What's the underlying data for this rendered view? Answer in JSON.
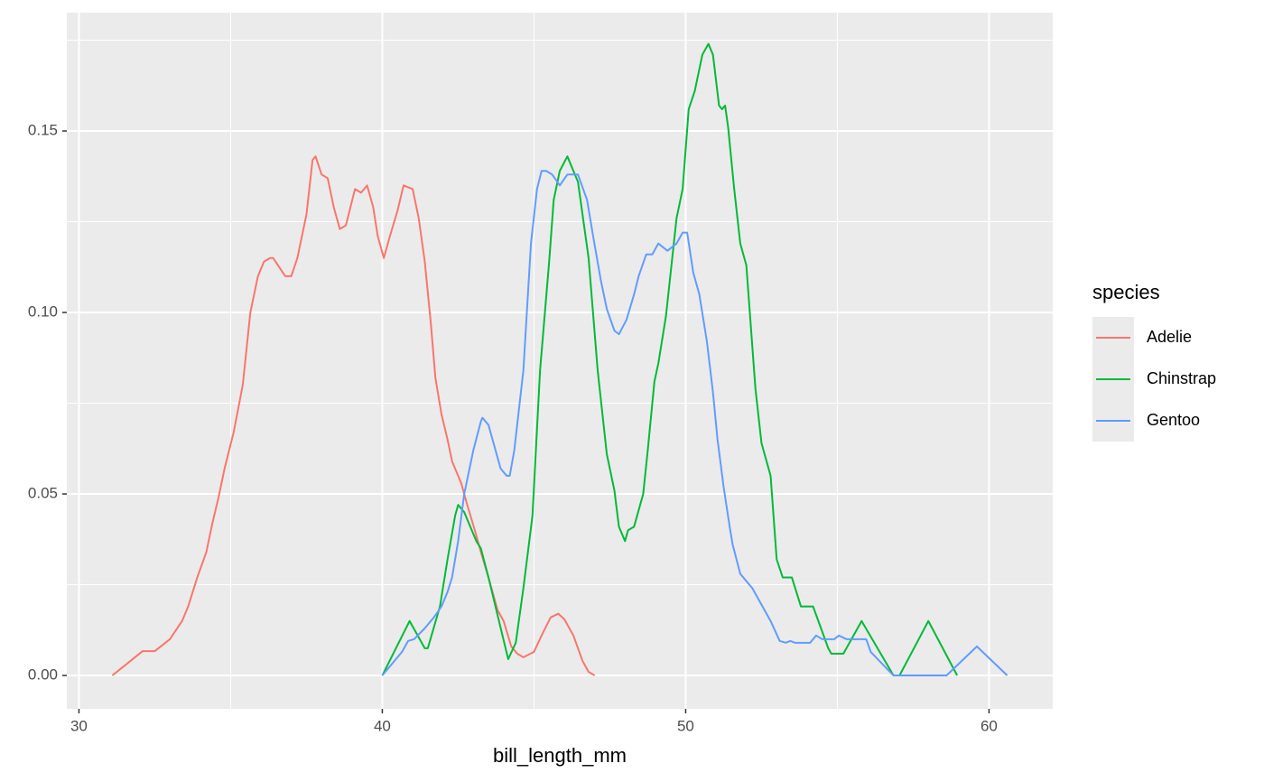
{
  "chart_data": {
    "type": "line",
    "x_label": "bill_length_mm",
    "legend_title": "species",
    "legend_position": "right",
    "grid": true,
    "xlim": [
      29.6,
      62.1
    ],
    "ylim": [
      -0.0092,
      0.1826
    ],
    "xticks": [
      30,
      40,
      50,
      60
    ],
    "yticks": [
      {
        "value": 0,
        "label": "0.00"
      },
      {
        "value": 0.05,
        "label": "0.05"
      },
      {
        "value": 0.1,
        "label": "0.10"
      },
      {
        "value": 0.15,
        "label": "0.15"
      }
    ],
    "series": [
      {
        "name": "Adelie",
        "color": "#F8766D",
        "x": [
          31.1,
          32.1,
          32.5,
          33.0,
          33.4,
          33.6,
          33.9,
          34.2,
          34.4,
          34.6,
          34.8,
          35.1,
          35.4,
          35.65,
          35.9,
          36.1,
          36.3,
          36.4,
          36.8,
          37.0,
          37.2,
          37.5,
          37.7,
          37.8,
          38.0,
          38.2,
          38.4,
          38.6,
          38.8,
          39.1,
          39.3,
          39.5,
          39.7,
          39.85,
          40.05,
          40.25,
          40.5,
          40.7,
          41.0,
          41.2,
          41.4,
          41.6,
          41.75,
          41.95,
          42.15,
          42.3,
          42.6,
          42.8,
          43.05,
          43.25,
          43.5,
          43.8,
          44.0,
          44.25,
          44.45,
          44.65,
          45.0,
          45.25,
          45.55,
          45.8,
          46.0,
          46.3,
          46.6,
          46.8,
          47.0
        ],
        "values": [
          0,
          0.0067,
          0.0067,
          0.01,
          0.015,
          0.019,
          0.027,
          0.034,
          0.042,
          0.049,
          0.057,
          0.067,
          0.08,
          0.1,
          0.11,
          0.114,
          0.115,
          0.115,
          0.11,
          0.11,
          0.115,
          0.127,
          0.142,
          0.143,
          0.138,
          0.137,
          0.129,
          0.123,
          0.124,
          0.134,
          0.133,
          0.135,
          0.129,
          0.121,
          0.115,
          0.121,
          0.128,
          0.135,
          0.134,
          0.126,
          0.114,
          0.097,
          0.082,
          0.072,
          0.065,
          0.059,
          0.053,
          0.047,
          0.04,
          0.034,
          0.027,
          0.018,
          0.015,
          0.008,
          0.006,
          0.005,
          0.0065,
          0.011,
          0.016,
          0.017,
          0.0155,
          0.011,
          0.004,
          0.001,
          0
        ]
      },
      {
        "name": "Chinstrap",
        "color": "#00BA38",
        "x": [
          40.0,
          40.9,
          41.4,
          41.5,
          41.9,
          42.15,
          42.4,
          42.5,
          42.7,
          43.1,
          43.25,
          43.5,
          44.15,
          44.4,
          44.65,
          44.95,
          45.2,
          45.5,
          45.65,
          45.85,
          46.1,
          46.45,
          46.8,
          47.1,
          47.4,
          47.65,
          47.8,
          48.0,
          48.1,
          48.3,
          48.6,
          48.75,
          48.97,
          49.1,
          49.35,
          49.7,
          49.9,
          50.1,
          50.3,
          50.55,
          50.75,
          50.9,
          51.1,
          51.2,
          51.3,
          51.4,
          51.6,
          51.8,
          52.0,
          52.3,
          52.5,
          52.8,
          53.0,
          53.2,
          53.5,
          53.8,
          54.2,
          54.7,
          54.8,
          55.2,
          55.8,
          56.85,
          57.05,
          58.0,
          58.95
        ],
        "values": [
          0,
          0.015,
          0.0075,
          0.0075,
          0.019,
          0.032,
          0.044,
          0.047,
          0.045,
          0.037,
          0.035,
          0.027,
          0.0045,
          0.009,
          0.024,
          0.044,
          0.084,
          0.114,
          0.131,
          0.139,
          0.143,
          0.136,
          0.115,
          0.084,
          0.061,
          0.051,
          0.041,
          0.037,
          0.04,
          0.041,
          0.05,
          0.062,
          0.081,
          0.086,
          0.099,
          0.126,
          0.134,
          0.156,
          0.161,
          0.171,
          0.174,
          0.171,
          0.157,
          0.156,
          0.157,
          0.151,
          0.134,
          0.119,
          0.113,
          0.079,
          0.064,
          0.055,
          0.032,
          0.027,
          0.027,
          0.019,
          0.019,
          0.0075,
          0.006,
          0.006,
          0.015,
          0,
          0,
          0.015,
          0
        ]
      },
      {
        "name": "Gentoo",
        "color": "#619CFF",
        "x": [
          40.0,
          40.65,
          40.85,
          41.05,
          41.4,
          41.7,
          41.95,
          42.15,
          42.3,
          42.5,
          42.7,
          42.9,
          43.0,
          43.25,
          43.3,
          43.5,
          43.7,
          43.9,
          44.1,
          44.2,
          44.35,
          44.65,
          44.9,
          45.1,
          45.25,
          45.4,
          45.6,
          45.85,
          46.1,
          46.2,
          46.45,
          46.75,
          46.95,
          47.2,
          47.4,
          47.65,
          47.8,
          48.05,
          48.3,
          48.45,
          48.7,
          48.9,
          49.1,
          49.4,
          49.7,
          49.9,
          50.05,
          50.25,
          50.45,
          50.7,
          50.9,
          51.05,
          51.25,
          51.45,
          51.55,
          51.8,
          52.2,
          52.4,
          52.8,
          53.1,
          53.3,
          53.45,
          53.6,
          54.1,
          54.3,
          54.5,
          54.9,
          55.05,
          55.3,
          55.95,
          56.1,
          56.85,
          58.6,
          59.6,
          60.6
        ],
        "values": [
          0,
          0.0065,
          0.0095,
          0.01,
          0.013,
          0.016,
          0.019,
          0.023,
          0.027,
          0.037,
          0.05,
          0.058,
          0.062,
          0.07,
          0.071,
          0.069,
          0.063,
          0.057,
          0.055,
          0.055,
          0.062,
          0.084,
          0.119,
          0.134,
          0.139,
          0.139,
          0.138,
          0.135,
          0.138,
          0.138,
          0.138,
          0.131,
          0.121,
          0.109,
          0.101,
          0.095,
          0.094,
          0.098,
          0.105,
          0.11,
          0.116,
          0.116,
          0.119,
          0.117,
          0.119,
          0.122,
          0.122,
          0.111,
          0.105,
          0.092,
          0.078,
          0.065,
          0.052,
          0.041,
          0.036,
          0.028,
          0.024,
          0.021,
          0.015,
          0.0095,
          0.009,
          0.0095,
          0.009,
          0.009,
          0.011,
          0.01,
          0.01,
          0.011,
          0.01,
          0.01,
          0.0065,
          0,
          0,
          0.008,
          0
        ]
      }
    ]
  }
}
